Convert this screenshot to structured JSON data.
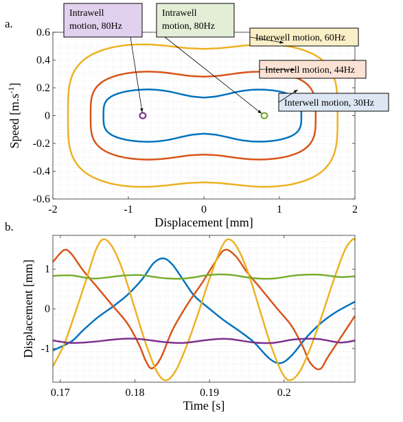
{
  "chart_data": [
    {
      "panel": "a.",
      "type": "line",
      "xlabel": "Displacement [mm]",
      "ylabel_main": "Speed [m.s",
      "ylabel_exp": "-1",
      "ylabel_close": "]",
      "xlim": [
        -2,
        2
      ],
      "ylim": [
        -0.6,
        0.6
      ],
      "xticks": [
        -2,
        -1,
        0,
        1,
        2
      ],
      "yticks": [
        -0.6,
        -0.4,
        -0.2,
        0,
        0.2,
        0.4,
        0.6
      ],
      "xtick_labels": [
        "-2",
        "-1",
        "0",
        "1",
        "2"
      ],
      "ytick_labels": [
        "-0.6",
        "-0.4",
        "-0.2",
        "0",
        "0.2",
        "0.4",
        "0.6"
      ],
      "grid": "minor dotted",
      "series": [
        {
          "name": "Interwell motion, 30Hz",
          "color": "#0072BD",
          "shape": "peanut",
          "x_extent": [
            -1.33,
            1.29
          ],
          "y_extent": [
            -0.21,
            0.21
          ],
          "y_at_x0": 0.13,
          "y_at_wells": 0.2
        },
        {
          "name": "Interwell motion, 44Hz",
          "color": "#D95319",
          "shape": "rounded",
          "x_extent": [
            -1.5,
            1.48
          ],
          "y_extent": [
            -0.34,
            0.34
          ],
          "y_at_x0": 0.28,
          "y_at_wells": 0.33
        },
        {
          "name": "Interwell motion, 60Hz",
          "color": "#EDB120",
          "shape": "rounded",
          "x_extent": [
            -1.8,
            1.77
          ],
          "y_extent": [
            -0.53,
            0.53
          ],
          "y_at_x0": 0.48,
          "y_at_wells": 0.53
        },
        {
          "name": "Intrawell motion, 80Hz",
          "color": "#7E2F8E",
          "shape": "small-orbit",
          "center": [
            -0.81,
            0
          ],
          "radius_x": 0.04,
          "radius_y": 0.02
        },
        {
          "name": "Intrawell motion, 80Hz",
          "color": "#77AC30",
          "shape": "small-orbit",
          "center": [
            0.8,
            0
          ],
          "radius_x": 0.04,
          "radius_y": 0.02
        }
      ],
      "annotations": [
        {
          "lines": [
            "Intrawell",
            "motion, 80Hz"
          ],
          "bg": "#E2D1EE",
          "target": [
            -0.81,
            0
          ]
        },
        {
          "lines": [
            "Intrawell",
            "motion, 80Hz"
          ],
          "bg": "#E2EED6",
          "target": [
            0.8,
            0
          ]
        },
        {
          "lines": [
            "Interwell motion, 60Hz"
          ],
          "bg": "#FBEFC8",
          "target": [
            1.1,
            0.52
          ]
        },
        {
          "lines": [
            "Interwell motion, 44Hz"
          ],
          "bg": "#FBE2D5",
          "target": [
            1.25,
            0.33
          ]
        },
        {
          "lines": [
            "Interwell motion, 30Hz"
          ],
          "bg": "#DDE7F4",
          "target": [
            1.28,
            0.2
          ]
        }
      ]
    },
    {
      "panel": "b.",
      "type": "line",
      "xlabel": "Time [s]",
      "ylabel": "Displacement [mm]",
      "xlim": [
        0.169,
        0.2095
      ],
      "ylim": [
        -1.85,
        1.85
      ],
      "xticks": [
        0.17,
        0.18,
        0.19,
        0.2
      ],
      "yticks": [
        -1,
        0,
        1
      ],
      "xtick_labels": [
        "0.17",
        "0.18",
        "0.19",
        "0.2"
      ],
      "ytick_labels": [
        "-1",
        "0",
        "1"
      ],
      "grid": "minor dotted",
      "series": [
        {
          "name": "Interwell motion, 30Hz",
          "color": "#0072BD",
          "frequency_hz": 30,
          "samples": [
            [
              0.169,
              -1.05
            ],
            [
              0.1715,
              -0.82
            ],
            [
              0.173,
              -0.55
            ],
            [
              0.175,
              -0.22
            ],
            [
              0.177,
              0.05
            ],
            [
              0.179,
              0.35
            ],
            [
              0.181,
              0.75
            ],
            [
              0.1825,
              1.15
            ],
            [
              0.1838,
              1.27
            ],
            [
              0.185,
              1.12
            ],
            [
              0.1865,
              0.72
            ],
            [
              0.188,
              0.32
            ],
            [
              0.19,
              0.0
            ],
            [
              0.192,
              -0.3
            ],
            [
              0.194,
              -0.56
            ],
            [
              0.196,
              -0.85
            ],
            [
              0.198,
              -1.25
            ],
            [
              0.1995,
              -1.37
            ],
            [
              0.201,
              -1.18
            ],
            [
              0.203,
              -0.72
            ],
            [
              0.205,
              -0.35
            ],
            [
              0.207,
              -0.08
            ],
            [
              0.2095,
              0.18
            ]
          ]
        },
        {
          "name": "Interwell motion, 44Hz",
          "color": "#D95319",
          "frequency_hz": 44,
          "samples": [
            [
              0.169,
              1.18
            ],
            [
              0.1705,
              1.48
            ],
            [
              0.1715,
              1.38
            ],
            [
              0.173,
              0.98
            ],
            [
              0.175,
              0.53
            ],
            [
              0.177,
              0.08
            ],
            [
              0.179,
              -0.37
            ],
            [
              0.1805,
              -0.88
            ],
            [
              0.1815,
              -1.33
            ],
            [
              0.1823,
              -1.5
            ],
            [
              0.1835,
              -1.23
            ],
            [
              0.185,
              -0.55
            ],
            [
              0.187,
              0.1
            ],
            [
              0.189,
              0.65
            ],
            [
              0.1905,
              1.1
            ],
            [
              0.192,
              1.48
            ],
            [
              0.1935,
              1.33
            ],
            [
              0.195,
              0.93
            ],
            [
              0.197,
              0.48
            ],
            [
              0.199,
              0.02
            ],
            [
              0.201,
              -0.43
            ],
            [
              0.2025,
              -0.95
            ],
            [
              0.2035,
              -1.36
            ],
            [
              0.2048,
              -1.52
            ],
            [
              0.206,
              -1.18
            ],
            [
              0.2095,
              -0.18
            ]
          ]
        },
        {
          "name": "Interwell motion, 60Hz",
          "color": "#EDB120",
          "frequency_hz": 60,
          "samples": [
            [
              0.169,
              -1.45
            ],
            [
              0.1705,
              -0.9
            ],
            [
              0.172,
              -0.1
            ],
            [
              0.1735,
              0.75
            ],
            [
              0.1748,
              1.5
            ],
            [
              0.1758,
              1.75
            ],
            [
              0.177,
              1.55
            ],
            [
              0.1785,
              0.9
            ],
            [
              0.18,
              0.0
            ],
            [
              0.1815,
              -0.9
            ],
            [
              0.183,
              -1.6
            ],
            [
              0.1842,
              -1.8
            ],
            [
              0.1855,
              -1.55
            ],
            [
              0.187,
              -0.9
            ],
            [
              0.1885,
              -0.1
            ],
            [
              0.19,
              0.75
            ],
            [
              0.1915,
              1.5
            ],
            [
              0.1925,
              1.75
            ],
            [
              0.1937,
              1.55
            ],
            [
              0.1952,
              0.9
            ],
            [
              0.1967,
              0.0
            ],
            [
              0.1982,
              -0.9
            ],
            [
              0.1997,
              -1.6
            ],
            [
              0.2008,
              -1.8
            ],
            [
              0.2022,
              -1.55
            ],
            [
              0.2037,
              -0.9
            ],
            [
              0.2052,
              -0.1
            ],
            [
              0.2067,
              0.75
            ],
            [
              0.2082,
              1.5
            ],
            [
              0.2092,
              1.75
            ],
            [
              0.2095,
              1.73
            ]
          ]
        },
        {
          "name": "Intrawell motion, 80Hz",
          "color": "#77AC30",
          "frequency_hz": 80,
          "samples": [
            [
              0.169,
              0.83
            ],
            [
              0.1715,
              0.84
            ],
            [
              0.1745,
              0.76
            ],
            [
              0.178,
              0.83
            ],
            [
              0.1805,
              0.85
            ],
            [
              0.184,
              0.77
            ],
            [
              0.1865,
              0.76
            ],
            [
              0.19,
              0.85
            ],
            [
              0.1925,
              0.86
            ],
            [
              0.196,
              0.77
            ],
            [
              0.1985,
              0.76
            ],
            [
              0.2015,
              0.84
            ],
            [
              0.2045,
              0.86
            ],
            [
              0.2075,
              0.8
            ],
            [
              0.2095,
              0.82
            ]
          ]
        },
        {
          "name": "Intrawell motion, 80Hz",
          "color": "#7E2F8E",
          "frequency_hz": 80,
          "samples": [
            [
              0.169,
              -0.8
            ],
            [
              0.1715,
              -0.86
            ],
            [
              0.1745,
              -0.83
            ],
            [
              0.178,
              -0.76
            ],
            [
              0.1805,
              -0.76
            ],
            [
              0.184,
              -0.84
            ],
            [
              0.1865,
              -0.86
            ],
            [
              0.19,
              -0.78
            ],
            [
              0.1925,
              -0.76
            ],
            [
              0.196,
              -0.85
            ],
            [
              0.1985,
              -0.86
            ],
            [
              0.2015,
              -0.77
            ],
            [
              0.2045,
              -0.76
            ],
            [
              0.2075,
              -0.85
            ],
            [
              0.2095,
              -0.8
            ]
          ]
        }
      ]
    }
  ]
}
